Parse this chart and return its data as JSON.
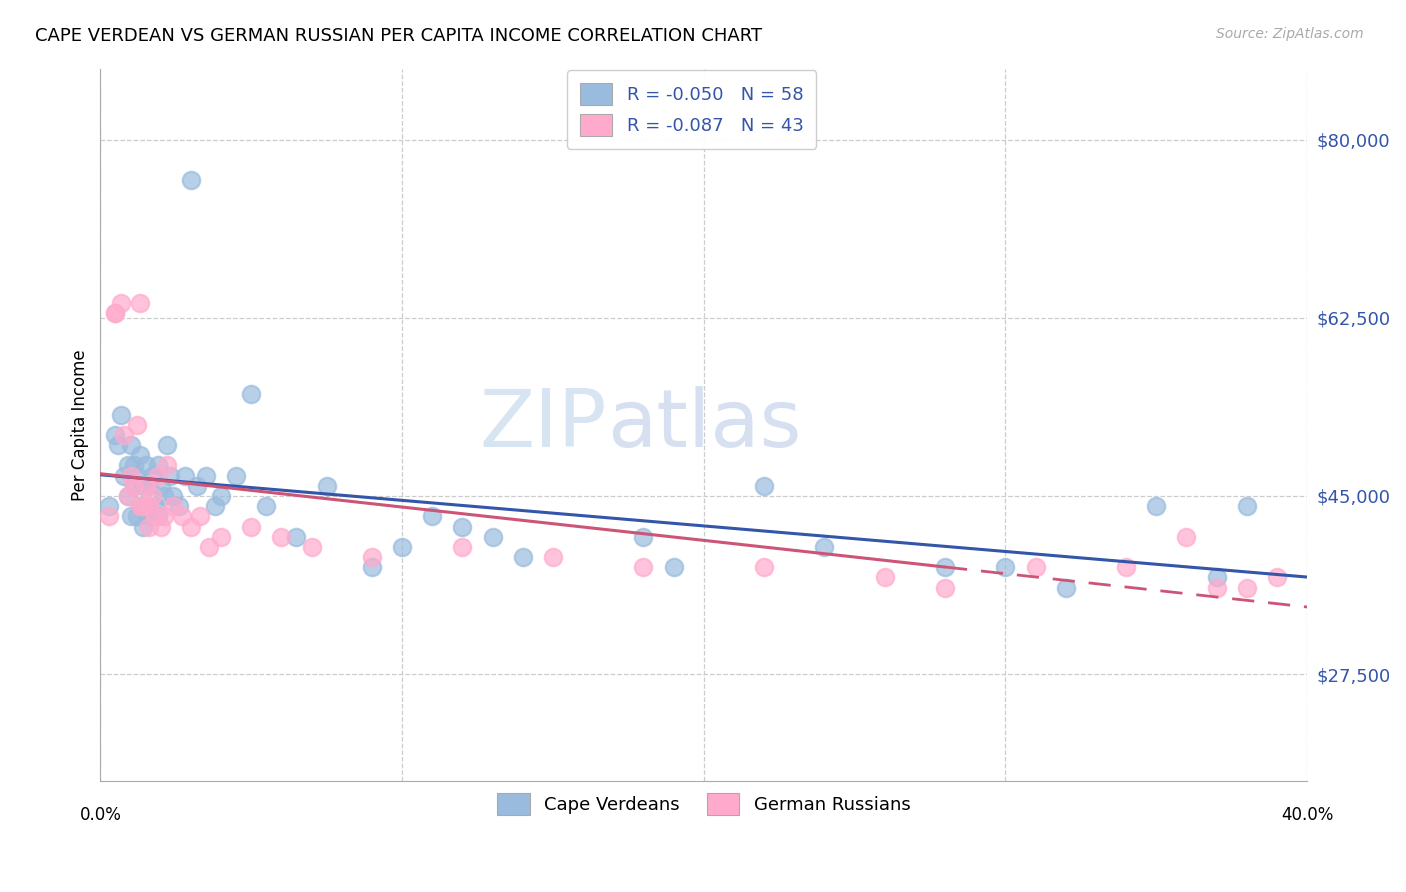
{
  "title": "CAPE VERDEAN VS GERMAN RUSSIAN PER CAPITA INCOME CORRELATION CHART",
  "source": "Source: ZipAtlas.com",
  "ylabel": "Per Capita Income",
  "yticks": [
    27500,
    45000,
    62500,
    80000
  ],
  "ytick_labels": [
    "$27,500",
    "$45,000",
    "$62,500",
    "$80,000"
  ],
  "xlim": [
    0.0,
    0.4
  ],
  "ylim": [
    17000,
    87000
  ],
  "legend1_label": "R = -0.050   N = 58",
  "legend2_label": "R = -0.087   N = 43",
  "legend_bottom1": "Cape Verdeans",
  "legend_bottom2": "German Russians",
  "blue_color": "#99bbdd",
  "pink_color": "#ffaacc",
  "line_blue": "#3355aa",
  "line_pink": "#cc5577",
  "watermark_zip": "ZIP",
  "watermark_atlas": "atlas",
  "blue_scatter_x": [
    0.003,
    0.005,
    0.006,
    0.007,
    0.008,
    0.009,
    0.009,
    0.01,
    0.01,
    0.011,
    0.011,
    0.012,
    0.012,
    0.013,
    0.013,
    0.014,
    0.014,
    0.015,
    0.015,
    0.016,
    0.016,
    0.017,
    0.018,
    0.019,
    0.019,
    0.02,
    0.021,
    0.022,
    0.023,
    0.024,
    0.026,
    0.028,
    0.03,
    0.032,
    0.035,
    0.038,
    0.04,
    0.045,
    0.05,
    0.055,
    0.065,
    0.075,
    0.09,
    0.1,
    0.11,
    0.12,
    0.13,
    0.14,
    0.18,
    0.19,
    0.22,
    0.24,
    0.28,
    0.3,
    0.32,
    0.35,
    0.37,
    0.38
  ],
  "blue_scatter_y": [
    44000,
    51000,
    50000,
    53000,
    47000,
    48000,
    45000,
    50000,
    43000,
    48000,
    46000,
    47000,
    43000,
    49000,
    44000,
    46000,
    42000,
    48000,
    44000,
    46000,
    43000,
    47000,
    44000,
    48000,
    43000,
    46000,
    45000,
    50000,
    47000,
    45000,
    44000,
    47000,
    76000,
    46000,
    47000,
    44000,
    45000,
    47000,
    55000,
    44000,
    41000,
    46000,
    38000,
    40000,
    43000,
    42000,
    41000,
    39000,
    41000,
    38000,
    46000,
    40000,
    38000,
    38000,
    36000,
    44000,
    37000,
    44000
  ],
  "pink_scatter_x": [
    0.003,
    0.005,
    0.005,
    0.007,
    0.008,
    0.009,
    0.01,
    0.011,
    0.012,
    0.013,
    0.013,
    0.014,
    0.015,
    0.016,
    0.016,
    0.017,
    0.018,
    0.019,
    0.02,
    0.021,
    0.022,
    0.024,
    0.027,
    0.03,
    0.033,
    0.036,
    0.04,
    0.05,
    0.06,
    0.07,
    0.09,
    0.12,
    0.15,
    0.18,
    0.22,
    0.26,
    0.28,
    0.31,
    0.34,
    0.36,
    0.37,
    0.38,
    0.39
  ],
  "pink_scatter_y": [
    43000,
    63000,
    63000,
    64000,
    51000,
    45000,
    47000,
    46000,
    52000,
    44000,
    64000,
    44000,
    46000,
    42000,
    44000,
    45000,
    43000,
    47000,
    42000,
    43000,
    48000,
    44000,
    43000,
    42000,
    43000,
    40000,
    41000,
    42000,
    41000,
    40000,
    39000,
    40000,
    39000,
    38000,
    38000,
    37000,
    36000,
    38000,
    38000,
    41000,
    36000,
    36000,
    37000
  ]
}
